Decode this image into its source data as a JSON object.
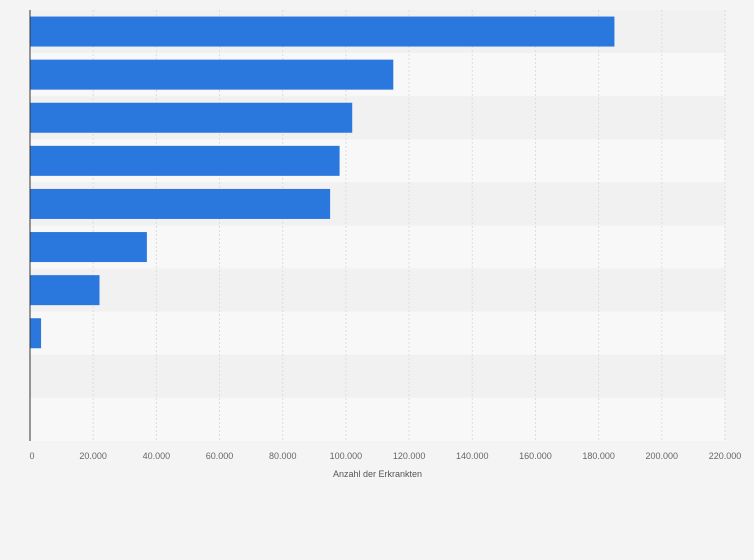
{
  "chart_data": {
    "type": "bar",
    "orientation": "horizontal",
    "title": "",
    "xlabel": "Anzahl der Erkrankten",
    "ylabel": "",
    "categories": [
      "",
      "",
      "",
      "",
      "",
      "",
      "",
      "",
      "",
      ""
    ],
    "values": [
      185000,
      115000,
      102000,
      98000,
      95000,
      37000,
      22000,
      3500,
      0,
      0
    ],
    "xlim": [
      0,
      220000
    ],
    "xticks": [
      0,
      20000,
      40000,
      60000,
      80000,
      100000,
      120000,
      140000,
      160000,
      180000,
      200000,
      220000
    ],
    "xtick_labels": [
      "0",
      "20.000",
      "40.000",
      "60.000",
      "80.000",
      "100.000",
      "120.000",
      "140.000",
      "160.000",
      "180.000",
      "200.000",
      "220.000"
    ],
    "grid": true,
    "legend": "none",
    "colors": {
      "bar": "#2a78de",
      "band_light": "#f8f8f8",
      "band_dark": "#f1f1f1",
      "grid": "#dddddd",
      "axis": "#333333",
      "background": "#f4f4f4"
    }
  }
}
